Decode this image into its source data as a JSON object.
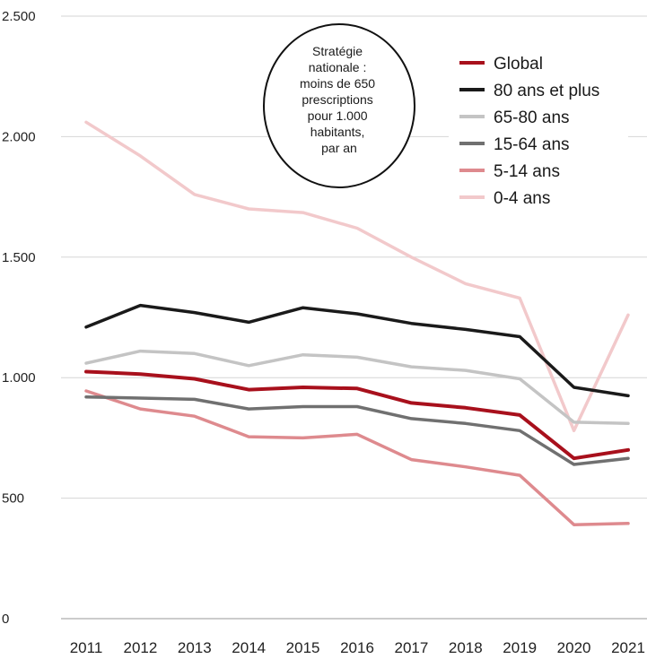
{
  "chart_data": {
    "type": "line",
    "title": "",
    "xlabel": "",
    "ylabel": "",
    "x": [
      "2011",
      "2012",
      "2013",
      "2014",
      "2015",
      "2016",
      "2017",
      "2018",
      "2019",
      "2020",
      "2021"
    ],
    "ylim": [
      0,
      2500
    ],
    "yticks": [
      0,
      500,
      1000,
      1500,
      2000,
      2500
    ],
    "ytick_labels": [
      "0",
      "500",
      "1.000",
      "1.500",
      "2.000",
      "2.500"
    ],
    "grid": true,
    "legend_position": "top-right",
    "annotation": {
      "lines": [
        "Stratégie",
        "nationale :",
        "moins de 650",
        "prescriptions",
        "pour 1.000",
        "habitants,",
        "par an"
      ]
    },
    "series": [
      {
        "name": "0-4 ans",
        "color": "#f2c9cb",
        "values": [
          2060,
          1920,
          1760,
          1700,
          1685,
          1620,
          1500,
          1390,
          1330,
          780,
          1260
        ]
      },
      {
        "name": "5-14 ans",
        "color": "#de8a8e",
        "values": [
          945,
          870,
          840,
          755,
          750,
          765,
          660,
          630,
          595,
          390,
          395
        ]
      },
      {
        "name": "15-64 ans",
        "color": "#707070",
        "values": [
          920,
          915,
          910,
          870,
          880,
          880,
          830,
          810,
          780,
          640,
          665
        ]
      },
      {
        "name": "65-80 ans",
        "color": "#c4c4c4",
        "values": [
          1060,
          1110,
          1100,
          1050,
          1095,
          1085,
          1045,
          1030,
          995,
          815,
          810
        ]
      },
      {
        "name": "80 ans et plus",
        "color": "#1a1a1a",
        "values": [
          1210,
          1300,
          1270,
          1230,
          1290,
          1265,
          1225,
          1200,
          1170,
          960,
          925
        ]
      },
      {
        "name": "Global",
        "color": "#a8101c",
        "values": [
          1025,
          1015,
          995,
          950,
          960,
          955,
          895,
          875,
          845,
          665,
          700
        ]
      }
    ],
    "legend_order": [
      "Global",
      "80 ans et plus",
      "65-80 ans",
      "15-64 ans",
      "5-14 ans",
      "0-4 ans"
    ]
  }
}
